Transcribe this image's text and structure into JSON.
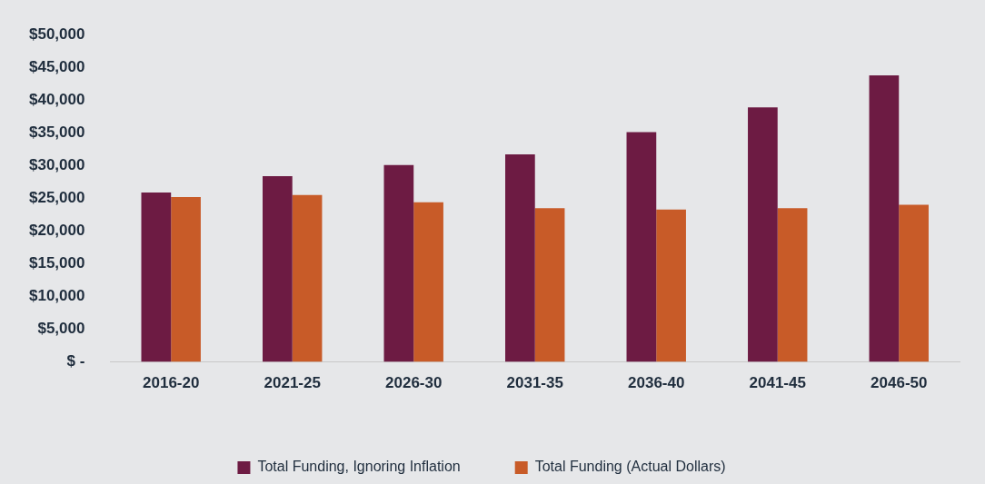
{
  "chart_data": {
    "type": "bar",
    "categories": [
      "2016-20",
      "2021-25",
      "2026-30",
      "2031-35",
      "2036-40",
      "2041-45",
      "2046-50"
    ],
    "series": [
      {
        "name": "Total Funding, Ignoring Inflation",
        "color": "#6d1b43",
        "values": [
          25900,
          28400,
          30100,
          31700,
          35100,
          38900,
          43800
        ]
      },
      {
        "name": "Total Funding (Actual Dollars)",
        "color": "#c85b28",
        "values": [
          25200,
          25500,
          24400,
          23500,
          23300,
          23500,
          24000
        ]
      }
    ],
    "ylim": [
      0,
      50000
    ],
    "yticks": [
      {
        "value": 0,
        "label": "$ -"
      },
      {
        "value": 5000,
        "label": "$5,000"
      },
      {
        "value": 10000,
        "label": "$10,000"
      },
      {
        "value": 15000,
        "label": "$15,000"
      },
      {
        "value": 20000,
        "label": "$20,000"
      },
      {
        "value": 25000,
        "label": "$25,000"
      },
      {
        "value": 30000,
        "label": "$30,000"
      },
      {
        "value": 35000,
        "label": "$35,000"
      },
      {
        "value": 40000,
        "label": "$40,000"
      },
      {
        "value": 45000,
        "label": "$45,000"
      },
      {
        "value": 50000,
        "label": "$50,000"
      }
    ],
    "grid": false,
    "legend": "bottom"
  }
}
